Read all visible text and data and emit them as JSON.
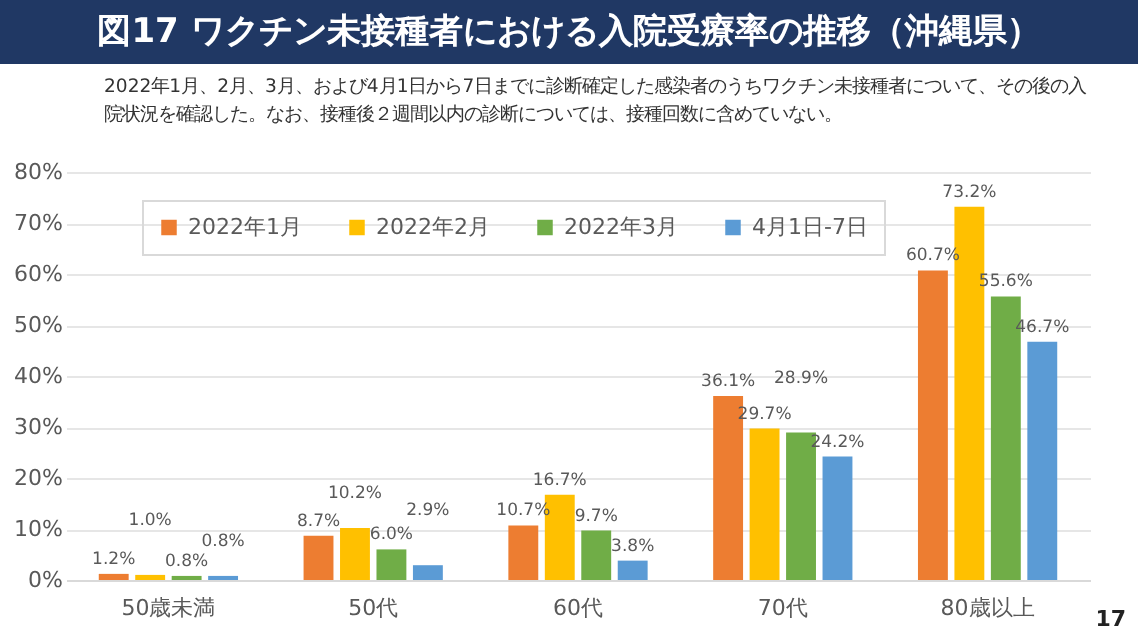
{
  "chart_data": {
    "type": "bar",
    "title": "図17 ワクチン未接種者における入院受療率の推移（沖縄県）",
    "subtitle": "2022年1月、2月、3月、および4月1日から7日までに診断確定した感染者のうちワクチン未接種者について、その後の入院状況を確認した。なお、接種後２週間以内の診断については、接種回数に含めていない。",
    "categories": [
      "50歳未満",
      "50代",
      "60代",
      "70代",
      "80歳以上"
    ],
    "series": [
      {
        "name": "2022年1月",
        "color": "#ed7d31",
        "values": [
          1.2,
          8.7,
          10.7,
          36.1,
          60.7
        ],
        "value_labels": [
          "1.2%",
          "8.7%",
          "10.7%",
          "36.1%",
          "60.7%"
        ]
      },
      {
        "name": "2022年2月",
        "color": "#ffc000",
        "values": [
          1.0,
          10.2,
          16.7,
          29.7,
          73.2
        ],
        "value_labels": [
          "1.0%",
          "10.2%",
          "16.7%",
          "29.7%",
          "73.2%"
        ]
      },
      {
        "name": "2022年3月",
        "color": "#70ad47",
        "values": [
          0.8,
          6.0,
          9.7,
          28.9,
          55.6
        ],
        "value_labels": [
          "0.8%",
          "6.0%",
          "9.7%",
          "28.9%",
          "55.6%"
        ]
      },
      {
        "name": "4月1日-7日",
        "color": "#5b9bd5",
        "values": [
          0.8,
          2.9,
          3.8,
          24.2,
          46.7
        ],
        "value_labels": [
          "0.8%",
          "2.9%",
          "3.8%",
          "24.2%",
          "46.7%"
        ]
      }
    ],
    "ylim": [
      0,
      80
    ],
    "yticks": [
      {
        "value": 0,
        "label": "0%"
      },
      {
        "value": 10,
        "label": "10%"
      },
      {
        "value": 20,
        "label": "20%"
      },
      {
        "value": 30,
        "label": "30%"
      },
      {
        "value": 40,
        "label": "40%"
      },
      {
        "value": 50,
        "label": "50%"
      },
      {
        "value": 60,
        "label": "60%"
      },
      {
        "value": 70,
        "label": "70%"
      },
      {
        "value": 80,
        "label": "80%"
      }
    ],
    "grid": "y",
    "legend": "top left",
    "annotations": [
      "17"
    ]
  }
}
